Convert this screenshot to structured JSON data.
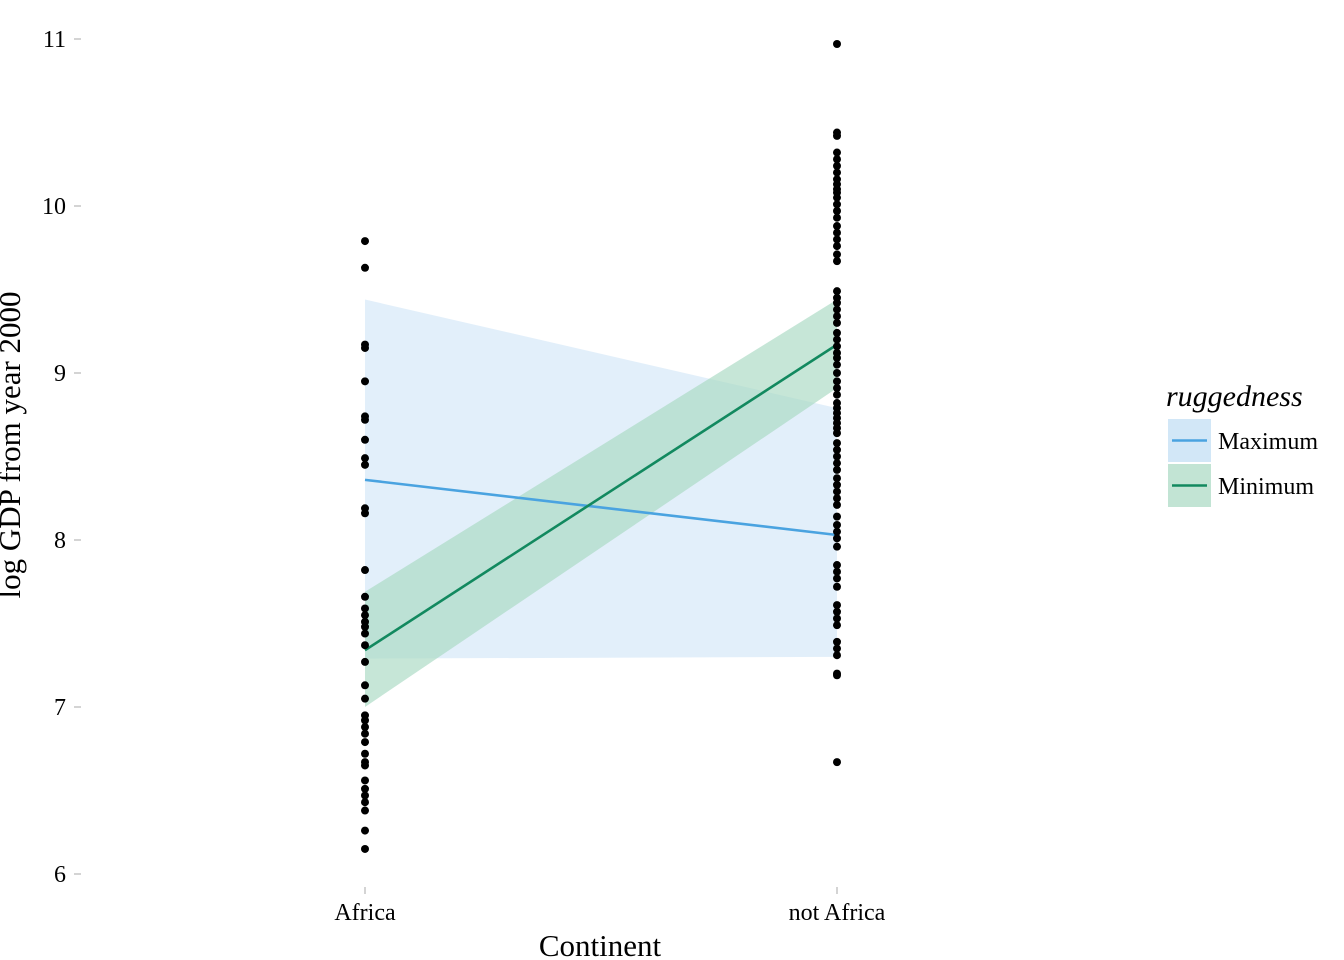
{
  "chart_data": {
    "type": "scatter",
    "title": "",
    "xlabel": "Continent",
    "ylabel": "log GDP from year 2000",
    "categories": [
      "Africa",
      "not Africa"
    ],
    "ylim": [
      6,
      11
    ],
    "yticks": [
      6,
      7,
      8,
      9,
      10,
      11
    ],
    "grid": false,
    "legend": {
      "title": "ruggedness",
      "position": "right",
      "entries": [
        "Maximum",
        "Minimum"
      ]
    },
    "series": [
      {
        "name": "Maximum",
        "type": "line-with-ribbon",
        "color": "#4aa3e0",
        "fill": "#d2e7f7",
        "values": [
          8.36,
          8.03
        ],
        "lower": [
          7.29,
          7.3
        ],
        "upper": [
          9.44,
          8.79
        ]
      },
      {
        "name": "Minimum",
        "type": "line-with-ribbon",
        "color": "#12895f",
        "fill": "#a7d8c2",
        "values": [
          7.34,
          9.17
        ],
        "lower": [
          7.0,
          8.91
        ],
        "upper": [
          7.69,
          9.44
        ]
      }
    ],
    "points": [
      {
        "category": "Africa",
        "values": [
          9.79,
          9.63,
          9.17,
          9.15,
          8.95,
          8.74,
          8.72,
          8.6,
          8.49,
          8.45,
          8.19,
          8.16,
          7.82,
          7.66,
          7.59,
          7.55,
          7.51,
          7.48,
          7.44,
          7.37,
          7.27,
          7.13,
          7.05,
          6.95,
          6.92,
          6.88,
          6.84,
          6.79,
          6.72,
          6.67,
          6.65,
          6.56,
          6.51,
          6.47,
          6.43,
          6.38,
          6.26,
          6.15
        ]
      },
      {
        "category": "not Africa",
        "values": [
          10.97,
          10.44,
          10.42,
          10.32,
          10.28,
          10.24,
          10.2,
          10.16,
          10.13,
          10.1,
          10.08,
          10.05,
          10.01,
          9.97,
          9.93,
          9.88,
          9.84,
          9.8,
          9.76,
          9.71,
          9.67,
          9.49,
          9.45,
          9.42,
          9.38,
          9.34,
          9.3,
          9.24,
          9.2,
          9.16,
          9.12,
          9.09,
          9.05,
          9.0,
          8.95,
          8.91,
          8.87,
          8.82,
          8.79,
          8.76,
          8.73,
          8.7,
          8.67,
          8.64,
          8.58,
          8.54,
          8.5,
          8.46,
          8.42,
          8.37,
          8.33,
          8.29,
          8.25,
          8.21,
          8.14,
          8.09,
          8.05,
          8.01,
          7.96,
          7.85,
          7.81,
          7.77,
          7.72,
          7.61,
          7.57,
          7.53,
          7.49,
          7.39,
          7.35,
          7.31,
          7.2,
          7.19,
          6.67
        ]
      }
    ]
  }
}
